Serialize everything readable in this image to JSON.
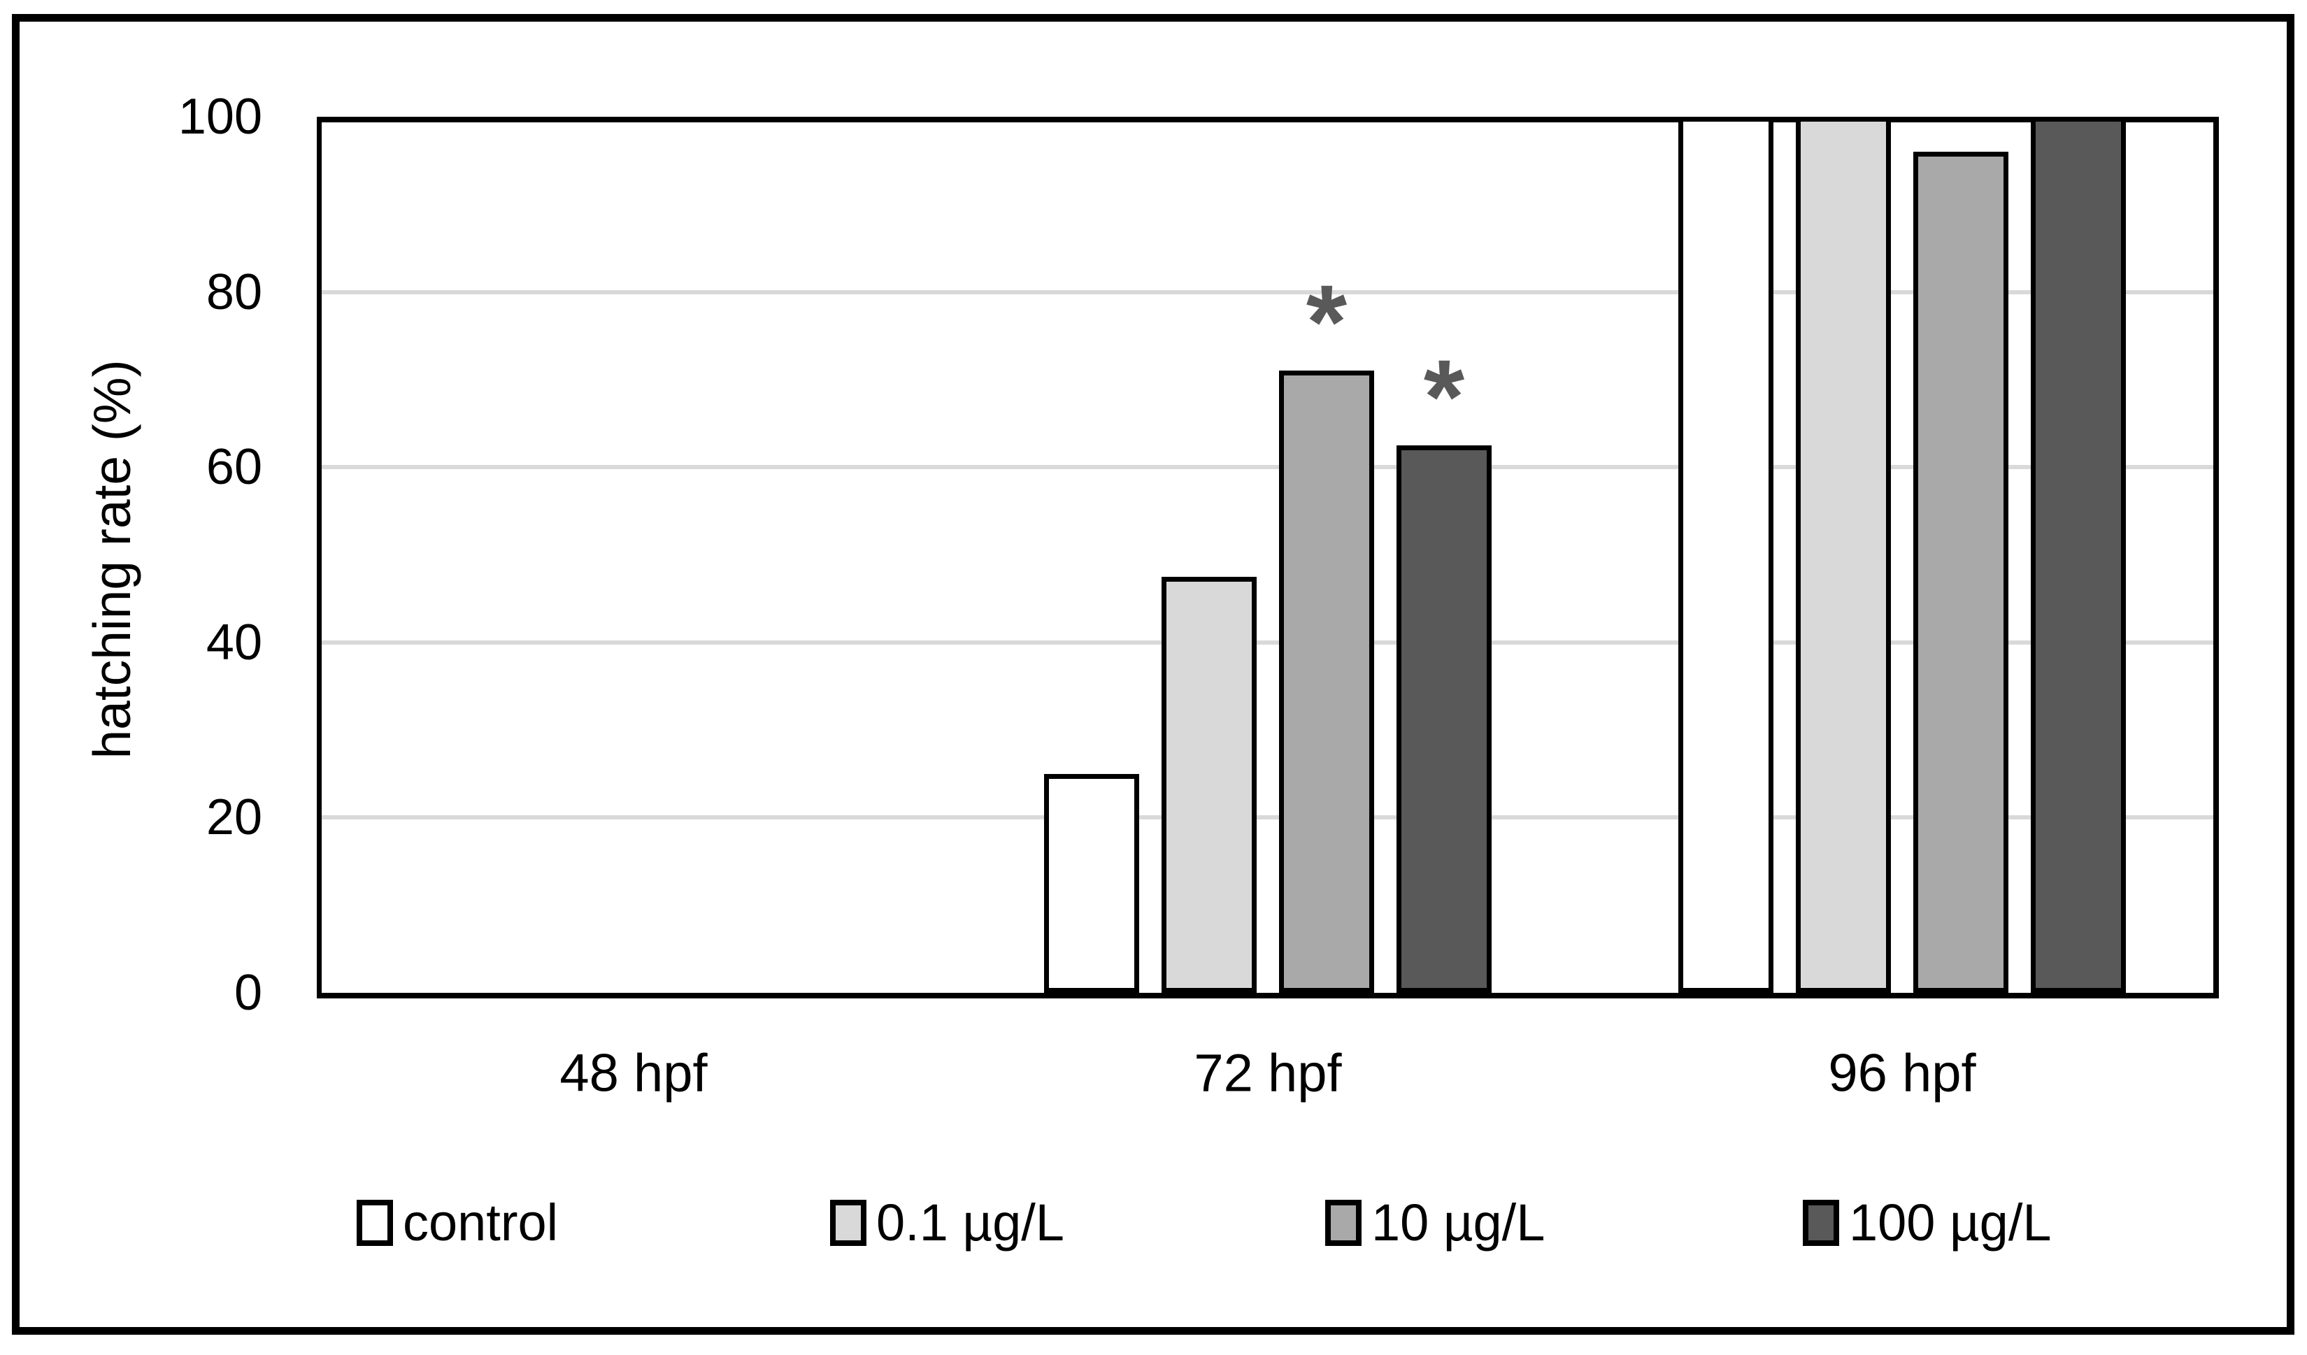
{
  "chart_data": {
    "type": "bar",
    "title": "",
    "xlabel": "",
    "ylabel": "hatching rate (%)",
    "ylim": [
      0,
      100
    ],
    "yticks": [
      0,
      20,
      40,
      60,
      80,
      100
    ],
    "grid": true,
    "legend_position": "bottom",
    "categories": [
      "48 hpf",
      "72 hpf",
      "96 hpf"
    ],
    "series": [
      {
        "name": "control",
        "fill": "#FFFFFF",
        "values": [
          0,
          25,
          100
        ]
      },
      {
        "name": "0.1 µg/L",
        "fill": "#D9D9D9",
        "values": [
          0,
          47.5,
          100
        ]
      },
      {
        "name": "10 µg/L",
        "fill": "#A9A9A9",
        "values": [
          0,
          71,
          96
        ]
      },
      {
        "name": "100 µg/L",
        "fill": "#595959",
        "values": [
          0,
          62.5,
          100
        ]
      }
    ],
    "annotations": [
      {
        "text": "*",
        "category_index": 1,
        "series_index": 2,
        "color": "#595959"
      },
      {
        "text": "*",
        "category_index": 1,
        "series_index": 3,
        "color": "#595959"
      }
    ],
    "colors": {
      "bar_outline": "#000000",
      "gridline": "#D9D9D9",
      "axis": "#000000",
      "text": "#000000"
    }
  }
}
